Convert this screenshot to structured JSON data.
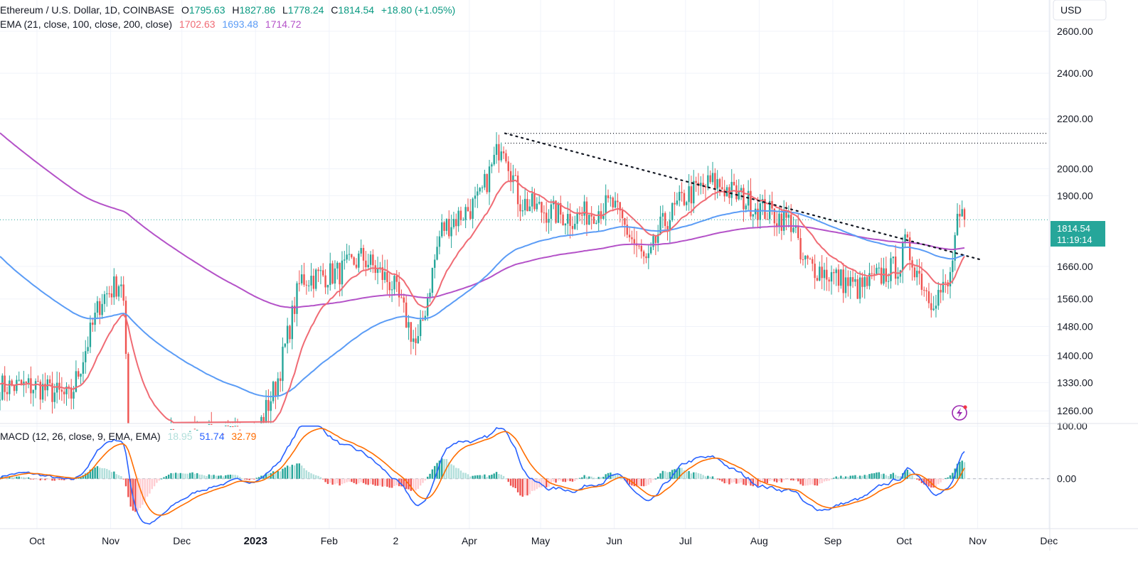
{
  "header": {
    "symbol": "Ethereum / U.S. Dollar, 1D, COINBASE",
    "o_label": "O",
    "o_value": "1795.63",
    "h_label": "H",
    "h_value": "1827.86",
    "l_label": "L",
    "l_value": "1778.24",
    "c_label": "C",
    "c_value": "1814.54",
    "change": "+18.80 (+1.05%)",
    "ema_label": "EMA (21, close, 100, close, 200, close)",
    "ema21_value": "1702.63",
    "ema100_value": "1693.48",
    "ema200_value": "1714.72",
    "macd_label": "MACD (12, 26, close, 9, EMA, EMA)",
    "macd_hist_value": "18.95",
    "macd_line_value": "51.74",
    "macd_signal_value": "32.79"
  },
  "currency": "USD",
  "price_tag": {
    "price": "1814.54",
    "countdown": "11:19:14"
  },
  "colors": {
    "up": "#26a69a",
    "down": "#ef5350",
    "ema21": "#f06b74",
    "ema100": "#5b9cf6",
    "ema200": "#b452c8",
    "macd": "#2962ff",
    "signal": "#ff6d00",
    "hist_up": "#26a69a",
    "hist_up_fade": "#b2dfdb",
    "hist_down": "#ef5350",
    "hist_down_fade": "#ffcdd2",
    "price_line": "#26a69a",
    "grid": "#f0f3fa",
    "text": "#131722"
  },
  "chart_data": {
    "type": "candlestick",
    "x_axis_ticks": [
      "Oct",
      "Nov",
      "Dec",
      "2023",
      "Feb",
      "2",
      "Apr",
      "May",
      "Jun",
      "Jul",
      "Aug",
      "Sep",
      "Oct",
      "Nov",
      "Dec"
    ],
    "price_axis_ticks": [
      2600,
      2400,
      2200,
      2000,
      1900,
      1660,
      1560,
      1480,
      1400,
      1330,
      1260
    ],
    "macd_axis_ticks": [
      100,
      0
    ],
    "price_scale": "log",
    "price_range": [
      1230,
      2760
    ],
    "macd_range": [
      -95,
      105
    ],
    "last_price": 1814.54,
    "candles_approx_close": [
      [
        "2022-10-01",
        1320
      ],
      [
        "2022-10-15",
        1290
      ],
      [
        "2022-10-28",
        1560
      ],
      [
        "2022-11-06",
        1620
      ],
      [
        "2022-11-09",
        1150
      ],
      [
        "2022-11-25",
        1190
      ],
      [
        "2022-12-15",
        1200
      ],
      [
        "2023-01-01",
        1200
      ],
      [
        "2023-01-10",
        1330
      ],
      [
        "2023-01-20",
        1620
      ],
      [
        "2023-02-05",
        1640
      ],
      [
        "2023-02-15",
        1690
      ],
      [
        "2023-02-28",
        1600
      ],
      [
        "2023-03-10",
        1420
      ],
      [
        "2023-03-20",
        1780
      ],
      [
        "2023-04-05",
        1880
      ],
      [
        "2023-04-15",
        2120
      ],
      [
        "2023-04-22",
        1880
      ],
      [
        "2023-05-01",
        1850
      ],
      [
        "2023-05-15",
        1820
      ],
      [
        "2023-05-31",
        1870
      ],
      [
        "2023-06-15",
        1660
      ],
      [
        "2023-06-20",
        1780
      ],
      [
        "2023-07-01",
        1900
      ],
      [
        "2023-07-13",
        1950
      ],
      [
        "2023-07-31",
        1860
      ],
      [
        "2023-08-16",
        1800
      ],
      [
        "2023-08-18",
        1680
      ],
      [
        "2023-09-01",
        1630
      ],
      [
        "2023-09-12",
        1590
      ],
      [
        "2023-09-30",
        1670
      ],
      [
        "2023-10-01",
        1740
      ],
      [
        "2023-10-12",
        1560
      ],
      [
        "2023-10-20",
        1600
      ],
      [
        "2023-10-23",
        1790
      ],
      [
        "2023-10-26",
        1814.54
      ]
    ],
    "ema21_endpoint": 1702.63,
    "ema100_endpoint": 1693.48,
    "ema200_endpoint": 1714.72,
    "trendline": {
      "from": [
        "2023-04-16",
        2140
      ],
      "to": [
        "2023-11-03",
        1680
      ],
      "style": "dotted"
    },
    "horizontal_levels": [
      2140,
      2100
    ],
    "macd": {
      "macd_line": 51.74,
      "signal": 32.79,
      "histogram": 18.95
    },
    "grid": true,
    "legend": "top-left"
  }
}
